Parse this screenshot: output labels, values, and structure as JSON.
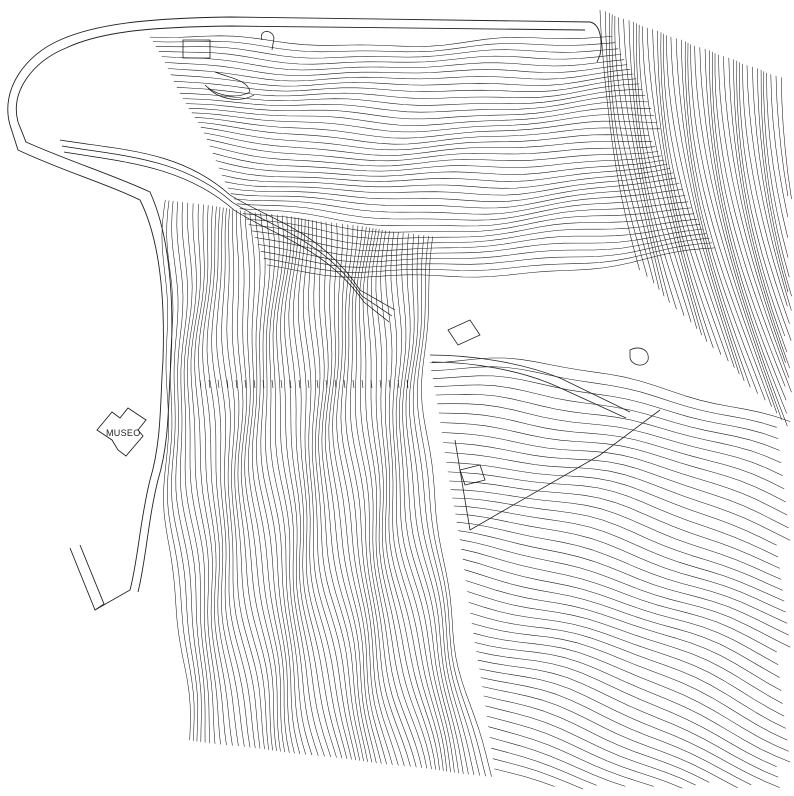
{
  "map": {
    "building_label": "MUSEO",
    "colors": {
      "background": "#ffffff",
      "line": "#1c1c1c"
    }
  }
}
